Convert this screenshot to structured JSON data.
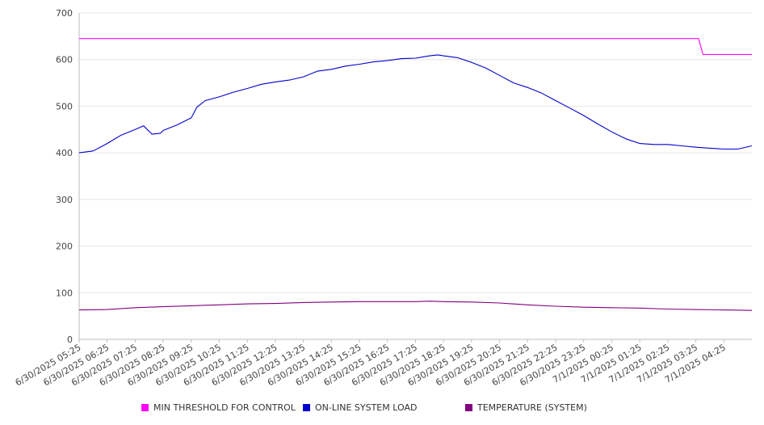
{
  "chart_data": {
    "type": "line",
    "title": "",
    "xlabel": "",
    "ylabel": "",
    "ylim": [
      0,
      700
    ],
    "yticks": [
      0,
      100,
      200,
      300,
      400,
      500,
      600,
      700
    ],
    "grid": true,
    "legend_position": "bottom",
    "x": [
      "6/30/2025 05:25",
      "6/30/2025 06:25",
      "6/30/2025 07:25",
      "6/30/2025 08:25",
      "6/30/2025 09:25",
      "6/30/2025 10:25",
      "6/30/2025 11:25",
      "6/30/2025 12:25",
      "6/30/2025 13:25",
      "6/30/2025 14:25",
      "6/30/2025 15:25",
      "6/30/2025 16:25",
      "6/30/2025 17:25",
      "6/30/2025 18:25",
      "6/30/2025 19:25",
      "6/30/2025 20:25",
      "6/30/2025 21:25",
      "6/30/2025 22:25",
      "6/30/2025 23:25",
      "7/1/2025 00:25",
      "7/1/2025 01:25",
      "7/1/2025 02:25",
      "7/1/2025 03:25",
      "7/1/2025 04:25"
    ],
    "x_end": "7/1/2025 05:20",
    "series": [
      {
        "name": "MIN THRESHOLD FOR CONTROL",
        "color": "#ff00ff",
        "points": [
          [
            0,
            645
          ],
          [
            22.1,
            645
          ],
          [
            22.25,
            611
          ],
          [
            24,
            611
          ]
        ]
      },
      {
        "name": "ON-LINE SYSTEM LOAD",
        "color": "#0000cc",
        "points": [
          [
            0,
            400
          ],
          [
            0.5,
            404
          ],
          [
            1,
            420
          ],
          [
            1.5,
            438
          ],
          [
            2,
            450
          ],
          [
            2.3,
            458
          ],
          [
            2.6,
            440
          ],
          [
            2.9,
            442
          ],
          [
            3,
            448
          ],
          [
            3.5,
            460
          ],
          [
            4,
            475
          ],
          [
            4.2,
            498
          ],
          [
            4.5,
            512
          ],
          [
            5,
            520
          ],
          [
            5.5,
            530
          ],
          [
            6,
            538
          ],
          [
            6.5,
            547
          ],
          [
            7,
            552
          ],
          [
            7.5,
            556
          ],
          [
            8,
            563
          ],
          [
            8.5,
            575
          ],
          [
            9,
            579
          ],
          [
            9.5,
            586
          ],
          [
            10,
            590
          ],
          [
            10.5,
            595
          ],
          [
            11,
            598
          ],
          [
            11.5,
            602
          ],
          [
            12,
            603
          ],
          [
            12.5,
            608
          ],
          [
            12.8,
            610
          ],
          [
            13,
            608
          ],
          [
            13.5,
            604
          ],
          [
            14,
            594
          ],
          [
            14.5,
            582
          ],
          [
            15,
            566
          ],
          [
            15.5,
            550
          ],
          [
            16,
            540
          ],
          [
            16.5,
            528
          ],
          [
            17,
            512
          ],
          [
            17.5,
            496
          ],
          [
            18,
            480
          ],
          [
            18.5,
            462
          ],
          [
            19,
            445
          ],
          [
            19.5,
            430
          ],
          [
            20,
            420
          ],
          [
            20.5,
            418
          ],
          [
            21,
            418
          ],
          [
            21.5,
            415
          ],
          [
            22,
            412
          ],
          [
            22.5,
            410
          ],
          [
            23,
            408
          ],
          [
            23.5,
            408
          ],
          [
            24,
            415
          ]
        ]
      },
      {
        "name": "TEMPERATURE (SYSTEM)",
        "color": "#800080",
        "points": [
          [
            0,
            63
          ],
          [
            1,
            64
          ],
          [
            2,
            68
          ],
          [
            3,
            70
          ],
          [
            4,
            72
          ],
          [
            5,
            74
          ],
          [
            6,
            76
          ],
          [
            7,
            77
          ],
          [
            8,
            79
          ],
          [
            9,
            80
          ],
          [
            10,
            81
          ],
          [
            11,
            81
          ],
          [
            12,
            81
          ],
          [
            12.5,
            82
          ],
          [
            13,
            81
          ],
          [
            14,
            80
          ],
          [
            15,
            78
          ],
          [
            16,
            74
          ],
          [
            17,
            71
          ],
          [
            18,
            69
          ],
          [
            19,
            68
          ],
          [
            20,
            67
          ],
          [
            21,
            65
          ],
          [
            22,
            64
          ],
          [
            23,
            63
          ],
          [
            24,
            62
          ]
        ]
      }
    ]
  }
}
